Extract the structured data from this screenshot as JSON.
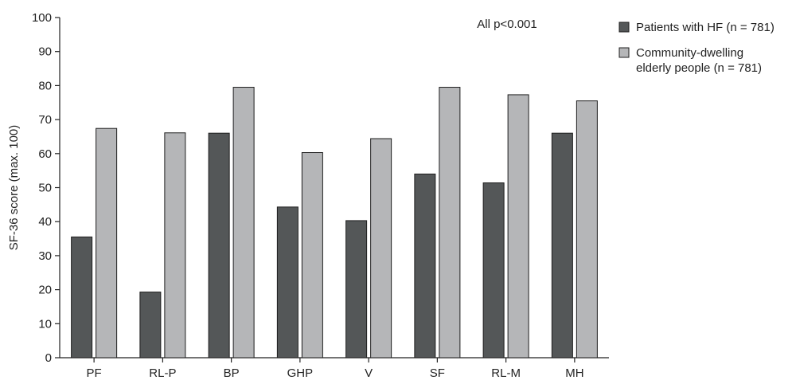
{
  "chart_data": {
    "type": "bar",
    "ylabel": "SF-36 score (max. 100)",
    "ylim": [
      0,
      100
    ],
    "yticks": [
      0,
      10,
      20,
      30,
      40,
      50,
      60,
      70,
      80,
      90,
      100
    ],
    "categories": [
      "PF",
      "RL-P",
      "BP",
      "GHP",
      "V",
      "SF",
      "RL-M",
      "MH"
    ],
    "annotation": "All p<0.001",
    "legend_position": "top-right",
    "grid": false,
    "series": [
      {
        "name_lines": [
          "Patients with HF (n = 781)"
        ],
        "color": "#545758",
        "values": [
          35.5,
          19.3,
          66.0,
          44.3,
          40.3,
          54.0,
          51.4,
          66.0
        ]
      },
      {
        "name_lines": [
          "Community-dwelling",
          "elderly people (n = 781)"
        ],
        "color": "#b5b6b8",
        "values": [
          67.4,
          66.1,
          79.5,
          60.3,
          64.4,
          79.5,
          77.3,
          75.5
        ]
      }
    ]
  }
}
